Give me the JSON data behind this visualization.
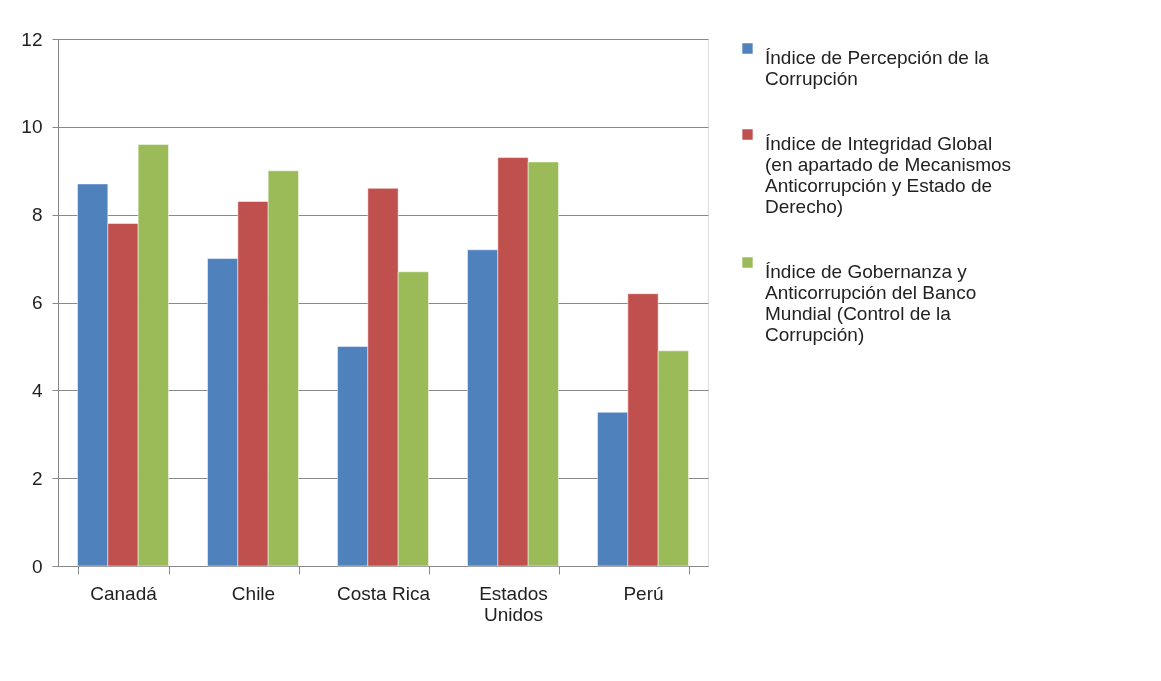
{
  "chart_data": {
    "type": "bar",
    "categories": [
      "Canadá",
      "Chile",
      "Costa Rica",
      "Estados Unidos",
      "Perú"
    ],
    "series": [
      {
        "name": "Índice de Percepción de la Corrupción",
        "color": "#4f81bd",
        "values": [
          8.7,
          7.0,
          5.0,
          7.2,
          3.5
        ]
      },
      {
        "name": "Índice de Integridad Global (en apartado de Mecanismos Anticorrupción y Estado de Derecho)",
        "color": "#c0504d",
        "values": [
          7.8,
          8.3,
          8.6,
          9.3,
          6.2
        ]
      },
      {
        "name": "Índice de Gobernanza y Anticorrupción del Banco Mundial (Control de la Corrupción)",
        "color": "#9bbb59",
        "values": [
          9.6,
          9.0,
          6.7,
          9.2,
          4.9
        ]
      }
    ],
    "ylim": [
      0,
      12
    ],
    "yticks": [
      0,
      2,
      4,
      6,
      8,
      10,
      12
    ],
    "grid": "y",
    "legend": "right"
  }
}
